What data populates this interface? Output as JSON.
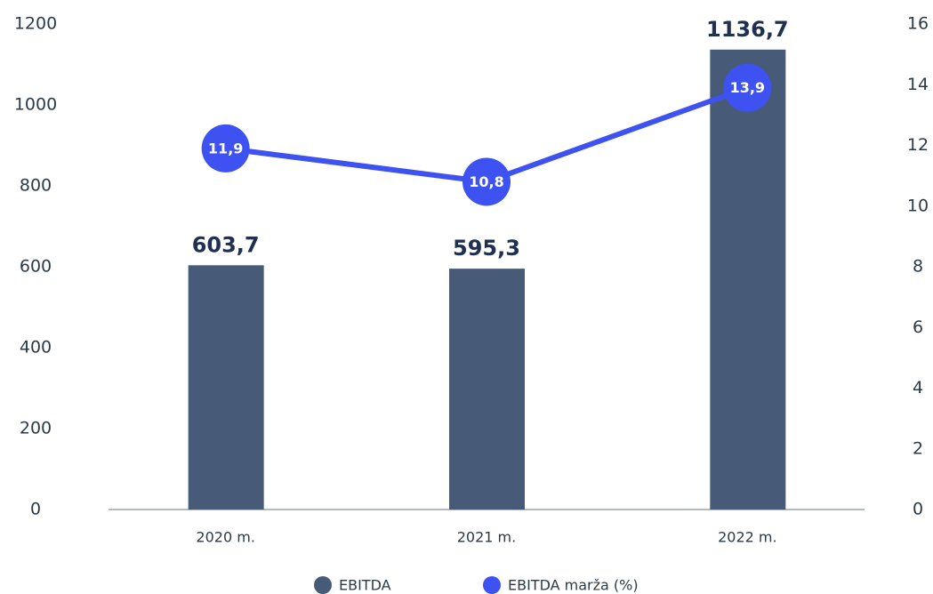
{
  "chart_data": {
    "type": "bar",
    "categories": [
      "2020 m.",
      "2021 m.",
      "2022 m."
    ],
    "series": [
      {
        "name": "EBITDA",
        "type": "bar",
        "color": "#475b78",
        "values": [
          603.7,
          595.3,
          1136.7
        ],
        "value_labels": [
          "603,7",
          "595,3",
          "1136,7"
        ]
      },
      {
        "name": "EBITDA marža (%)",
        "type": "line",
        "axis": "y2",
        "color": "#3d52f0",
        "values": [
          11.9,
          10.8,
          13.9
        ],
        "value_labels": [
          "11,9",
          "10,8",
          "13,9"
        ]
      }
    ],
    "ylim": [
      0,
      1200
    ],
    "yticks": [
      0,
      200,
      400,
      600,
      800,
      1000,
      1200
    ],
    "y2lim": [
      0,
      16
    ],
    "y2ticks": [
      0,
      2,
      4,
      6,
      8,
      10,
      12,
      14,
      16
    ],
    "legend": "bottom"
  }
}
